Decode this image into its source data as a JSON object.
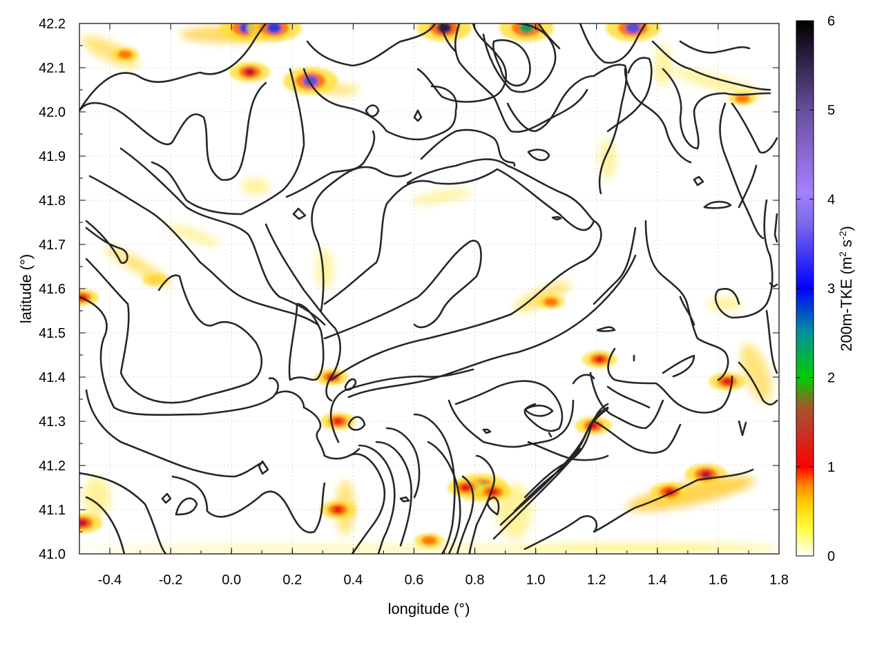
{
  "chart_data": {
    "type": "heatmap",
    "xlabel": "longitude (°)",
    "ylabel": "latitude (°)",
    "colorbar_label": "200m-TKE (m² s⁻²)",
    "colorbar_label_parts": [
      "200m-TKE (m",
      "2",
      " s",
      "-2",
      ")"
    ],
    "xlim": [
      -0.5,
      1.8
    ],
    "ylim": [
      41.0,
      42.2
    ],
    "xticks": [
      -0.4,
      -0.2,
      0.0,
      0.2,
      0.4,
      0.6,
      0.8,
      1.0,
      1.2,
      1.4,
      1.6,
      1.8
    ],
    "xtick_labels": [
      "-0.4",
      "-0.2",
      "0.0",
      "0.2",
      "0.4",
      "0.6",
      "0.8",
      "1.0",
      "1.2",
      "1.4",
      "1.6",
      "1.8"
    ],
    "yticks": [
      41.0,
      41.1,
      41.2,
      41.3,
      41.4,
      41.5,
      41.6,
      41.7,
      41.8,
      41.9,
      42.0,
      42.1,
      42.2
    ],
    "ytick_labels": [
      "41.0",
      "41.1",
      "41.2",
      "41.3",
      "41.4",
      "41.5",
      "41.6",
      "41.7",
      "41.8",
      "41.9",
      "42.0",
      "42.1",
      "42.2"
    ],
    "colorbar_range": [
      0,
      6
    ],
    "colorbar_ticks": [
      0,
      1,
      2,
      3,
      4,
      5,
      6
    ],
    "colorbar_tick_labels": [
      "0",
      "1",
      "2",
      "3",
      "4",
      "5",
      "6"
    ],
    "colormap": [
      "#ffffff",
      "#ffff00",
      "#ff9900",
      "#ff0000",
      "#c0392b",
      "#00cc00",
      "#00a0c0",
      "#0000ff",
      "#9966ff",
      "#6a4fa0",
      "#000000"
    ],
    "grid": true,
    "contour_color": "#262626",
    "hotspots": [
      {
        "lon": 1.56,
        "lat": 41.18,
        "tke": 1.3
      },
      {
        "lon": 1.44,
        "lat": 41.14,
        "tke": 1.1
      },
      {
        "lon": 1.63,
        "lat": 41.39,
        "tke": 1.0
      },
      {
        "lon": 1.21,
        "lat": 41.44,
        "tke": 0.9
      },
      {
        "lon": 1.19,
        "lat": 41.29,
        "tke": 1.0
      },
      {
        "lon": 0.82,
        "lat": 41.15,
        "tke": 2.2
      },
      {
        "lon": 0.77,
        "lat": 41.15,
        "tke": 1.0
      },
      {
        "lon": 0.86,
        "lat": 41.14,
        "tke": 1.0
      },
      {
        "lon": 0.35,
        "lat": 41.1,
        "tke": 1.0
      },
      {
        "lon": 0.33,
        "lat": 41.4,
        "tke": 0.8
      },
      {
        "lon": 0.35,
        "lat": 41.3,
        "tke": 0.9
      },
      {
        "lon": 0.06,
        "lat": 42.09,
        "tke": 1.2
      },
      {
        "lon": 0.26,
        "lat": 42.07,
        "tke": 4.6
      },
      {
        "lon": 0.05,
        "lat": 42.19,
        "tke": 3.8
      },
      {
        "lon": 0.14,
        "lat": 42.19,
        "tke": 3.5
      },
      {
        "lon": 0.7,
        "lat": 42.19,
        "tke": 5.5
      },
      {
        "lon": 1.32,
        "lat": 42.19,
        "tke": 4.0
      },
      {
        "lon": 0.97,
        "lat": 42.19,
        "tke": 2.0
      },
      {
        "lon": -0.49,
        "lat": 41.58,
        "tke": 0.8
      },
      {
        "lon": -0.49,
        "lat": 41.07,
        "tke": 1.2
      },
      {
        "lon": -0.35,
        "lat": 42.13,
        "tke": 0.5
      },
      {
        "lon": 0.65,
        "lat": 41.03,
        "tke": 0.6
      },
      {
        "lon": 1.68,
        "lat": 42.03,
        "tke": 0.5
      },
      {
        "lon": 1.05,
        "lat": 41.57,
        "tke": 0.5
      },
      {
        "lon": -0.25,
        "lat": 41.62,
        "tke": 0.4
      }
    ]
  }
}
